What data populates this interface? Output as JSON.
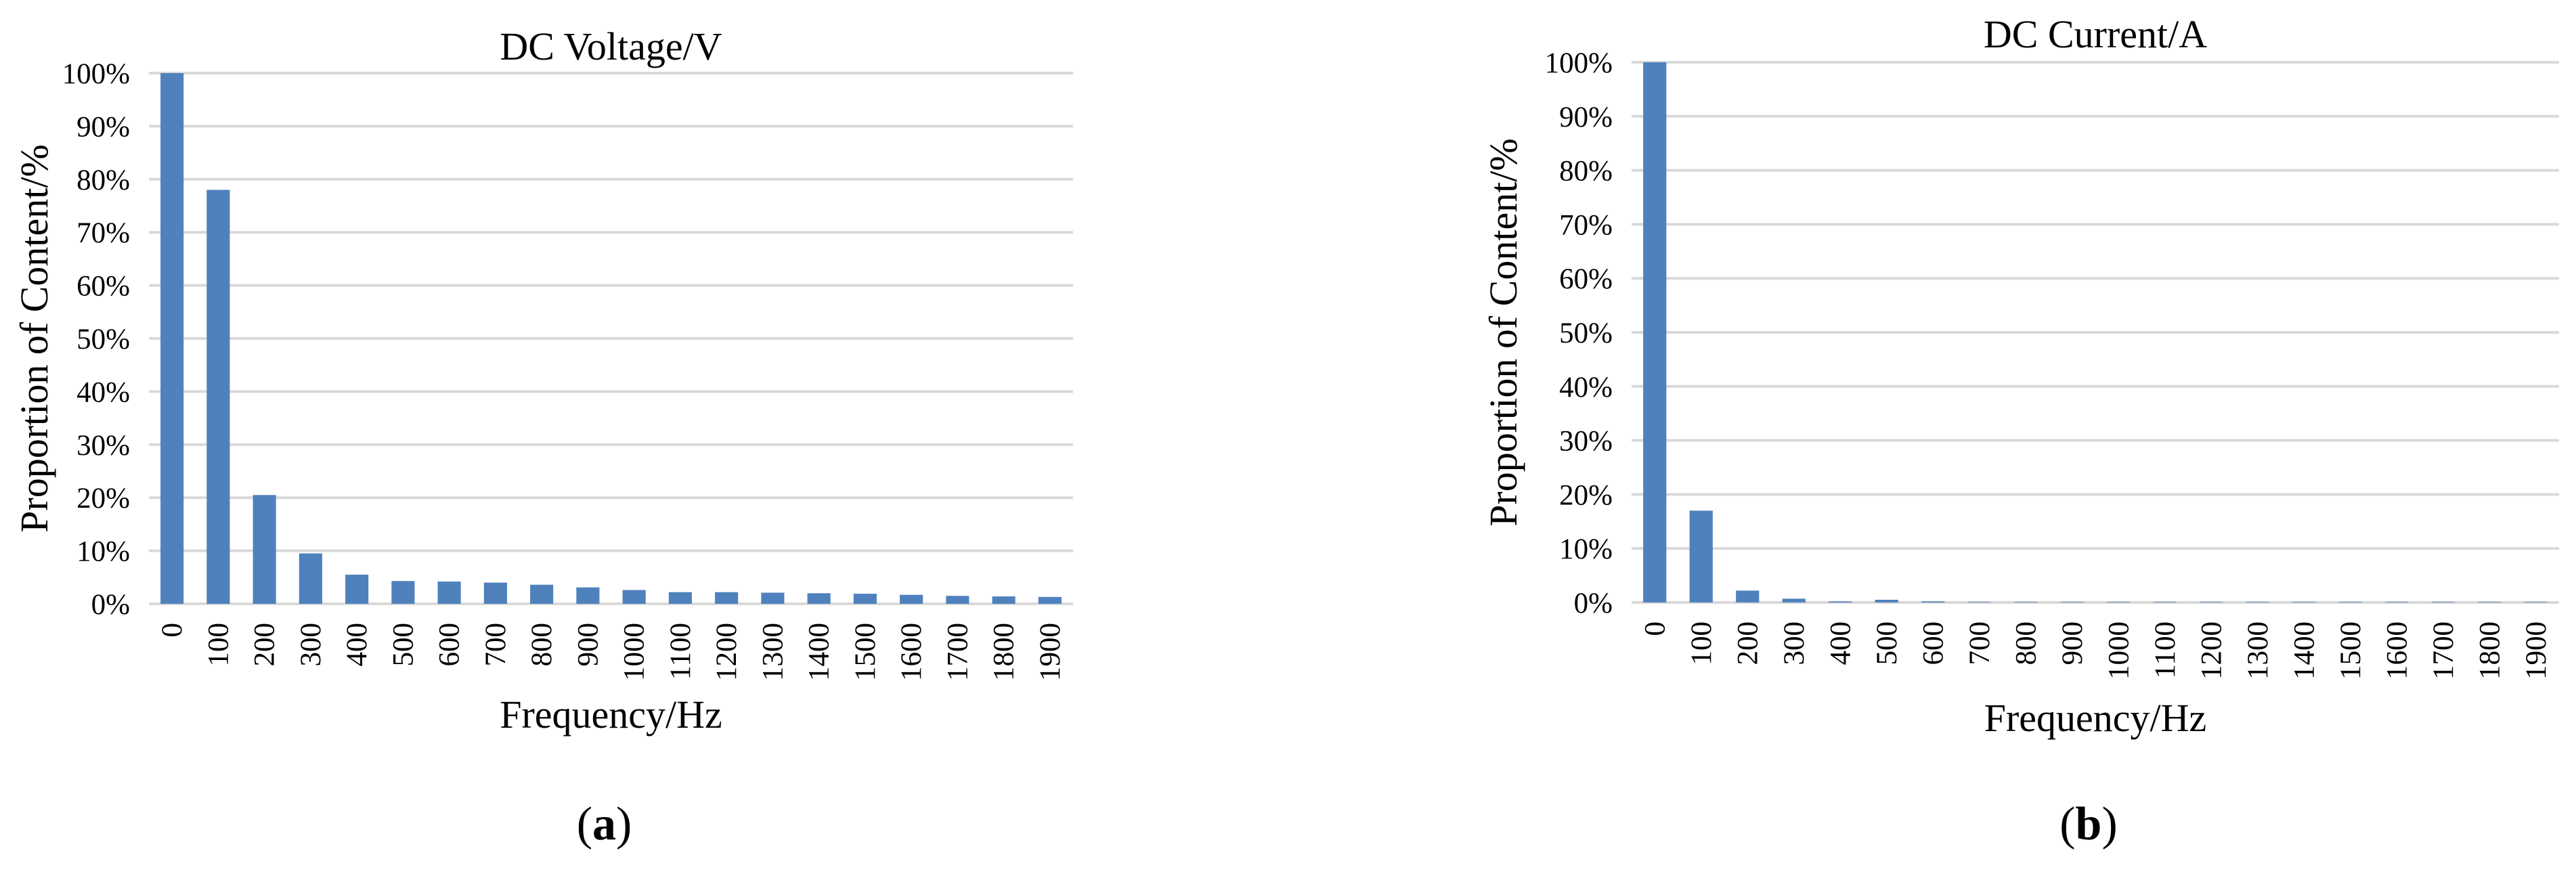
{
  "chart_data": [
    {
      "type": "bar",
      "title": "DC Voltage/V",
      "xlabel": "Frequency/Hz",
      "ylabel": "Proportion of Content/%",
      "panel_label": "a",
      "categories": [
        "0",
        "100",
        "200",
        "300",
        "400",
        "500",
        "600",
        "700",
        "800",
        "900",
        "1000",
        "1100",
        "1200",
        "1300",
        "1400",
        "1500",
        "1600",
        "1700",
        "1800",
        "1900"
      ],
      "values": [
        100,
        78,
        20.5,
        9.5,
        5.5,
        4.3,
        4.2,
        4.0,
        3.6,
        3.1,
        2.6,
        2.2,
        2.2,
        2.1,
        2.0,
        1.9,
        1.7,
        1.5,
        1.4,
        1.3
      ],
      "yticks": [
        "0%",
        "10%",
        "20%",
        "30%",
        "40%",
        "50%",
        "60%",
        "70%",
        "80%",
        "90%",
        "100%"
      ],
      "ylim": [
        0,
        100
      ],
      "grid": true,
      "color": "#4f81bd"
    },
    {
      "type": "bar",
      "title": "DC Current/A",
      "xlabel": "Frequency/Hz",
      "ylabel": "Proportion of Content/%",
      "panel_label": "b",
      "categories": [
        "0",
        "100",
        "200",
        "300",
        "400",
        "500",
        "600",
        "700",
        "800",
        "900",
        "1000",
        "1100",
        "1200",
        "1300",
        "1400",
        "1500",
        "1600",
        "1700",
        "1800",
        "1900"
      ],
      "values": [
        100,
        17,
        2.2,
        0.7,
        0.2,
        0.5,
        0.2,
        0.1,
        0.1,
        0.1,
        0.1,
        0.1,
        0.1,
        0.1,
        0.1,
        0.1,
        0.1,
        0.1,
        0.1,
        0.1
      ],
      "yticks": [
        "0%",
        "10%",
        "20%",
        "30%",
        "40%",
        "50%",
        "60%",
        "70%",
        "80%",
        "90%",
        "100%"
      ],
      "ylim": [
        0,
        100
      ],
      "grid": true,
      "color": "#4f81bd"
    }
  ]
}
